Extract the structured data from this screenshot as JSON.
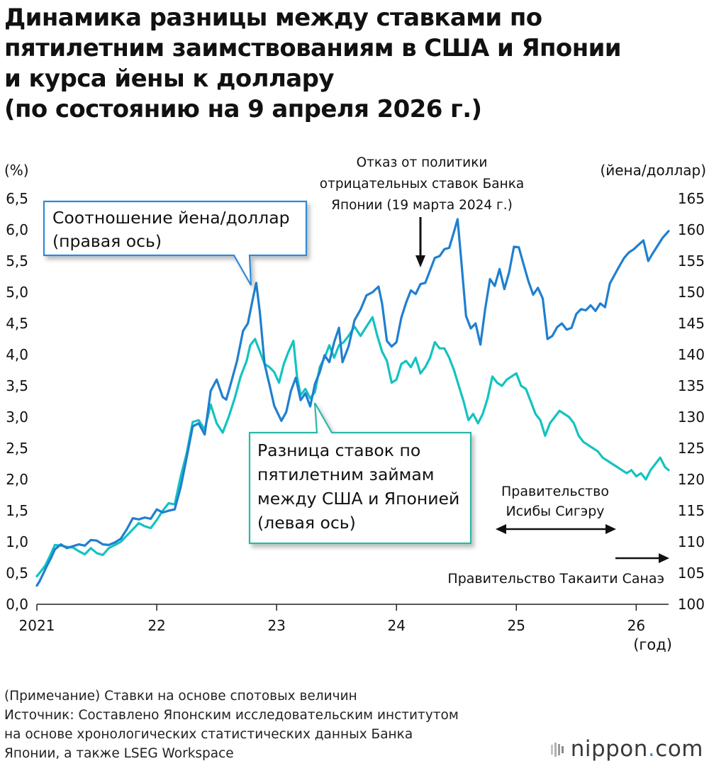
{
  "title_lines": [
    "Динамика разницы между ставками по",
    "пятилетним заимствованиям в США и Японии",
    "и курса йены к доллару",
    "(по состоянию на 9 апреля 2026 г.)"
  ],
  "chart_data": {
    "type": "line",
    "left_axis": {
      "unit_label": "(%)",
      "ticks": [
        "0,0",
        "0,5",
        "1,0",
        "1,5",
        "2,0",
        "2,5",
        "3,0",
        "3,5",
        "4,0",
        "4,5",
        "5,0",
        "5,5",
        "6,0",
        "6,5"
      ],
      "range": [
        0,
        6.5
      ]
    },
    "right_axis": {
      "unit_label": "(йена/доллар)",
      "ticks": [
        "100",
        "105",
        "110",
        "115",
        "120",
        "125",
        "130",
        "135",
        "140",
        "145",
        "150",
        "155",
        "160",
        "165"
      ],
      "range": [
        100,
        165
      ]
    },
    "x_axis": {
      "tick_labels": [
        "2021",
        "22",
        "23",
        "24",
        "25",
        "26"
      ],
      "unit_label": "(год)",
      "range": [
        2021.0,
        2026.27
      ]
    },
    "series": [
      {
        "name": "Соотношение йена/доллар (правая ось)",
        "axis": "right",
        "color": "#1f7fd0",
        "points": [
          [
            2021.0,
            103.0
          ],
          [
            2021.02,
            103.6
          ],
          [
            2021.05,
            104.8
          ],
          [
            2021.08,
            106.0
          ],
          [
            2021.12,
            107.5
          ],
          [
            2021.15,
            108.8
          ],
          [
            2021.2,
            109.6
          ],
          [
            2021.25,
            109.0
          ],
          [
            2021.3,
            109.3
          ],
          [
            2021.35,
            109.6
          ],
          [
            2021.4,
            109.4
          ],
          [
            2021.45,
            110.3
          ],
          [
            2021.5,
            110.2
          ],
          [
            2021.55,
            109.6
          ],
          [
            2021.6,
            109.5
          ],
          [
            2021.65,
            109.9
          ],
          [
            2021.7,
            110.5
          ],
          [
            2021.75,
            112.0
          ],
          [
            2021.8,
            113.8
          ],
          [
            2021.85,
            113.6
          ],
          [
            2021.9,
            113.9
          ],
          [
            2021.95,
            113.7
          ],
          [
            2022.0,
            115.2
          ],
          [
            2022.05,
            114.7
          ],
          [
            2022.1,
            115.0
          ],
          [
            2022.15,
            115.2
          ],
          [
            2022.2,
            118.8
          ],
          [
            2022.25,
            123.5
          ],
          [
            2022.3,
            128.5
          ],
          [
            2022.35,
            129.0
          ],
          [
            2022.4,
            127.2
          ],
          [
            2022.45,
            134.2
          ],
          [
            2022.5,
            136.0
          ],
          [
            2022.55,
            133.2
          ],
          [
            2022.58,
            132.8
          ],
          [
            2022.62,
            135.5
          ],
          [
            2022.67,
            139.0
          ],
          [
            2022.72,
            143.8
          ],
          [
            2022.76,
            145.0
          ],
          [
            2022.8,
            148.8
          ],
          [
            2022.83,
            151.5
          ],
          [
            2022.86,
            146.8
          ],
          [
            2022.9,
            138.5
          ],
          [
            2022.94,
            135.2
          ],
          [
            2022.98,
            131.8
          ],
          [
            2023.0,
            131.0
          ],
          [
            2023.04,
            129.4
          ],
          [
            2023.08,
            130.8
          ],
          [
            2023.12,
            134.2
          ],
          [
            2023.16,
            136.3
          ],
          [
            2023.2,
            132.7
          ],
          [
            2023.24,
            133.8
          ],
          [
            2023.28,
            131.7
          ],
          [
            2023.32,
            135.3
          ],
          [
            2023.36,
            137.2
          ],
          [
            2023.4,
            139.9
          ],
          [
            2023.44,
            138.8
          ],
          [
            2023.48,
            142.0
          ],
          [
            2023.52,
            144.3
          ],
          [
            2023.55,
            138.8
          ],
          [
            2023.6,
            141.3
          ],
          [
            2023.65,
            145.5
          ],
          [
            2023.7,
            147.2
          ],
          [
            2023.75,
            149.5
          ],
          [
            2023.8,
            150.0
          ],
          [
            2023.85,
            150.9
          ],
          [
            2023.88,
            148.2
          ],
          [
            2023.92,
            142.2
          ],
          [
            2023.96,
            141.3
          ],
          [
            2024.0,
            142.0
          ],
          [
            2024.04,
            145.9
          ],
          [
            2024.08,
            148.3
          ],
          [
            2024.12,
            150.3
          ],
          [
            2024.16,
            149.7
          ],
          [
            2024.2,
            151.3
          ],
          [
            2024.24,
            151.5
          ],
          [
            2024.28,
            153.5
          ],
          [
            2024.32,
            155.5
          ],
          [
            2024.36,
            155.8
          ],
          [
            2024.4,
            156.9
          ],
          [
            2024.44,
            157.1
          ],
          [
            2024.48,
            159.7
          ],
          [
            2024.51,
            161.7
          ],
          [
            2024.54,
            155.2
          ],
          [
            2024.58,
            146.2
          ],
          [
            2024.62,
            144.2
          ],
          [
            2024.66,
            145.0
          ],
          [
            2024.7,
            141.6
          ],
          [
            2024.74,
            147.3
          ],
          [
            2024.78,
            152.1
          ],
          [
            2024.82,
            151.0
          ],
          [
            2024.86,
            153.7
          ],
          [
            2024.9,
            150.5
          ],
          [
            2024.94,
            153.2
          ],
          [
            2024.98,
            157.3
          ],
          [
            2025.02,
            157.2
          ],
          [
            2025.06,
            154.5
          ],
          [
            2025.1,
            151.8
          ],
          [
            2025.14,
            149.6
          ],
          [
            2025.18,
            150.7
          ],
          [
            2025.22,
            149.0
          ],
          [
            2025.26,
            142.5
          ],
          [
            2025.3,
            143.0
          ],
          [
            2025.34,
            144.4
          ],
          [
            2025.38,
            145.0
          ],
          [
            2025.42,
            144.0
          ],
          [
            2025.46,
            144.3
          ],
          [
            2025.5,
            146.5
          ],
          [
            2025.54,
            147.3
          ],
          [
            2025.58,
            147.1
          ],
          [
            2025.62,
            147.9
          ],
          [
            2025.66,
            147.0
          ],
          [
            2025.7,
            148.2
          ],
          [
            2025.74,
            147.6
          ],
          [
            2025.78,
            151.4
          ],
          [
            2025.82,
            152.8
          ],
          [
            2025.86,
            154.2
          ],
          [
            2025.9,
            155.5
          ],
          [
            2025.94,
            156.4
          ],
          [
            2025.98,
            156.9
          ],
          [
            2026.02,
            157.6
          ],
          [
            2026.06,
            158.3
          ],
          [
            2026.1,
            155.0
          ],
          [
            2026.14,
            156.3
          ],
          [
            2026.18,
            157.5
          ],
          [
            2026.22,
            158.7
          ],
          [
            2026.27,
            159.8
          ]
        ]
      },
      {
        "name": "Разница ставок по пятилетним займам между США и Японией (левая ось)",
        "axis": "left",
        "color": "#13c3c0",
        "points": [
          [
            2021.0,
            0.45
          ],
          [
            2021.03,
            0.52
          ],
          [
            2021.07,
            0.62
          ],
          [
            2021.11,
            0.78
          ],
          [
            2021.15,
            0.95
          ],
          [
            2021.2,
            0.94
          ],
          [
            2021.25,
            0.92
          ],
          [
            2021.3,
            0.91
          ],
          [
            2021.35,
            0.85
          ],
          [
            2021.4,
            0.8
          ],
          [
            2021.45,
            0.9
          ],
          [
            2021.5,
            0.82
          ],
          [
            2021.55,
            0.79
          ],
          [
            2021.6,
            0.9
          ],
          [
            2021.65,
            0.95
          ],
          [
            2021.7,
            1.0
          ],
          [
            2021.75,
            1.1
          ],
          [
            2021.8,
            1.2
          ],
          [
            2021.85,
            1.3
          ],
          [
            2021.9,
            1.25
          ],
          [
            2021.95,
            1.22
          ],
          [
            2022.0,
            1.35
          ],
          [
            2022.05,
            1.5
          ],
          [
            2022.1,
            1.62
          ],
          [
            2022.15,
            1.6
          ],
          [
            2022.2,
            2.05
          ],
          [
            2022.25,
            2.42
          ],
          [
            2022.3,
            2.92
          ],
          [
            2022.35,
            2.95
          ],
          [
            2022.4,
            2.8
          ],
          [
            2022.45,
            3.2
          ],
          [
            2022.5,
            2.9
          ],
          [
            2022.55,
            2.75
          ],
          [
            2022.6,
            3.0
          ],
          [
            2022.65,
            3.3
          ],
          [
            2022.7,
            3.65
          ],
          [
            2022.75,
            3.9
          ],
          [
            2022.78,
            4.15
          ],
          [
            2022.82,
            4.25
          ],
          [
            2022.86,
            4.05
          ],
          [
            2022.9,
            3.85
          ],
          [
            2022.94,
            3.8
          ],
          [
            2022.98,
            3.72
          ],
          [
            2023.02,
            3.55
          ],
          [
            2023.06,
            3.85
          ],
          [
            2023.1,
            4.05
          ],
          [
            2023.14,
            4.22
          ],
          [
            2023.17,
            3.65
          ],
          [
            2023.2,
            3.35
          ],
          [
            2023.24,
            3.45
          ],
          [
            2023.28,
            3.3
          ],
          [
            2023.32,
            3.4
          ],
          [
            2023.36,
            3.8
          ],
          [
            2023.4,
            3.95
          ],
          [
            2023.44,
            4.15
          ],
          [
            2023.48,
            3.95
          ],
          [
            2023.52,
            4.15
          ],
          [
            2023.56,
            4.2
          ],
          [
            2023.6,
            4.3
          ],
          [
            2023.65,
            4.45
          ],
          [
            2023.7,
            4.3
          ],
          [
            2023.75,
            4.45
          ],
          [
            2023.8,
            4.6
          ],
          [
            2023.84,
            4.3
          ],
          [
            2023.88,
            4.05
          ],
          [
            2023.92,
            3.9
          ],
          [
            2023.96,
            3.55
          ],
          [
            2024.0,
            3.6
          ],
          [
            2024.04,
            3.85
          ],
          [
            2024.08,
            3.9
          ],
          [
            2024.12,
            3.8
          ],
          [
            2024.16,
            3.95
          ],
          [
            2024.2,
            3.7
          ],
          [
            2024.24,
            3.8
          ],
          [
            2024.28,
            3.95
          ],
          [
            2024.32,
            4.2
          ],
          [
            2024.36,
            4.1
          ],
          [
            2024.4,
            4.1
          ],
          [
            2024.44,
            3.95
          ],
          [
            2024.48,
            3.75
          ],
          [
            2024.52,
            3.5
          ],
          [
            2024.56,
            3.25
          ],
          [
            2024.6,
            2.95
          ],
          [
            2024.64,
            3.05
          ],
          [
            2024.68,
            2.9
          ],
          [
            2024.72,
            3.05
          ],
          [
            2024.76,
            3.3
          ],
          [
            2024.8,
            3.65
          ],
          [
            2024.84,
            3.55
          ],
          [
            2024.88,
            3.5
          ],
          [
            2024.92,
            3.6
          ],
          [
            2024.96,
            3.65
          ],
          [
            2025.0,
            3.7
          ],
          [
            2025.04,
            3.5
          ],
          [
            2025.08,
            3.45
          ],
          [
            2025.12,
            3.25
          ],
          [
            2025.16,
            3.05
          ],
          [
            2025.2,
            2.95
          ],
          [
            2025.24,
            2.7
          ],
          [
            2025.28,
            2.9
          ],
          [
            2025.32,
            3.0
          ],
          [
            2025.36,
            3.1
          ],
          [
            2025.4,
            3.05
          ],
          [
            2025.44,
            3.0
          ],
          [
            2025.48,
            2.9
          ],
          [
            2025.52,
            2.7
          ],
          [
            2025.56,
            2.6
          ],
          [
            2025.6,
            2.55
          ],
          [
            2025.64,
            2.5
          ],
          [
            2025.68,
            2.45
          ],
          [
            2025.72,
            2.35
          ],
          [
            2025.76,
            2.3
          ],
          [
            2025.8,
            2.25
          ],
          [
            2025.84,
            2.2
          ],
          [
            2025.88,
            2.15
          ],
          [
            2025.92,
            2.1
          ],
          [
            2025.96,
            2.15
          ],
          [
            2026.0,
            2.05
          ],
          [
            2026.04,
            2.1
          ],
          [
            2026.08,
            2.0
          ],
          [
            2026.12,
            2.15
          ],
          [
            2026.16,
            2.25
          ],
          [
            2026.2,
            2.35
          ],
          [
            2026.24,
            2.2
          ],
          [
            2026.27,
            2.15
          ]
        ]
      }
    ],
    "callouts": {
      "yen": [
        "Соотношение йена/доллар",
        "(правая ось)"
      ],
      "spread": [
        "Разница ставок по",
        "пятилетним займам",
        "между США и Японией",
        "(левая ось)"
      ]
    },
    "annotations": {
      "boj": [
        "Отказ от политики",
        "отрицательных ставок Банка",
        "Японии (19 марта 2024 г.)"
      ],
      "ishiba": [
        "Правительство",
        "Исибы Сигэру"
      ],
      "takaichi": "Правительство Такаити Санаэ"
    },
    "grid": false
  },
  "footnotes": [
    "(Примечание) Ставки на основе спотовых величин",
    "Источник: Составлено Японским исследовательским институтом",
    "на основе хронологических статистических данных Банка",
    "Японии, а также LSEG Workspace"
  ],
  "logo": {
    "name": "nippon",
    "dot": ".",
    "suffix": "com"
  },
  "colors": {
    "yen_line": "#1f7fd0",
    "spread_line": "#13c3c0",
    "callout_blue": "#2f8ad6",
    "callout_teal": "#2bb8a8"
  }
}
